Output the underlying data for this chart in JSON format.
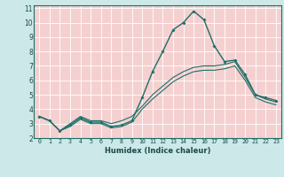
{
  "title": "",
  "xlabel": "Humidex (Indice chaleur)",
  "bg_color": "#cce8e8",
  "plot_bg_color": "#f5d0d0",
  "grid_color": "#ffffff",
  "line_color": "#1a7068",
  "x": [
    0,
    1,
    2,
    3,
    4,
    5,
    6,
    7,
    8,
    9,
    10,
    11,
    12,
    13,
    14,
    15,
    16,
    17,
    18,
    19,
    20,
    21,
    22,
    23
  ],
  "y_main": [
    3.5,
    3.2,
    2.5,
    2.9,
    3.4,
    3.1,
    3.1,
    2.8,
    2.9,
    3.2,
    4.8,
    6.6,
    8.0,
    9.5,
    10.0,
    10.8,
    10.2,
    8.4,
    7.3,
    7.4,
    6.4,
    5.0,
    4.8,
    4.6
  ],
  "y_upper": [
    3.5,
    3.2,
    2.5,
    3.0,
    3.5,
    3.2,
    3.2,
    3.0,
    3.2,
    3.5,
    4.2,
    5.0,
    5.6,
    6.2,
    6.6,
    6.9,
    7.0,
    7.0,
    7.1,
    7.3,
    6.2,
    5.0,
    4.7,
    4.5
  ],
  "y_lower": [
    3.5,
    3.2,
    2.5,
    2.8,
    3.3,
    3.0,
    3.0,
    2.7,
    2.8,
    3.1,
    4.0,
    4.7,
    5.3,
    5.9,
    6.3,
    6.6,
    6.7,
    6.7,
    6.8,
    7.0,
    6.0,
    4.8,
    4.5,
    4.3
  ],
  "xlim": [
    -0.5,
    23.5
  ],
  "ylim": [
    2,
    11.2
  ],
  "yticks": [
    2,
    3,
    4,
    5,
    6,
    7,
    8,
    9,
    10,
    11
  ],
  "xticks": [
    0,
    1,
    2,
    3,
    4,
    5,
    6,
    7,
    8,
    9,
    10,
    11,
    12,
    13,
    14,
    15,
    16,
    17,
    18,
    19,
    20,
    21,
    22,
    23
  ]
}
